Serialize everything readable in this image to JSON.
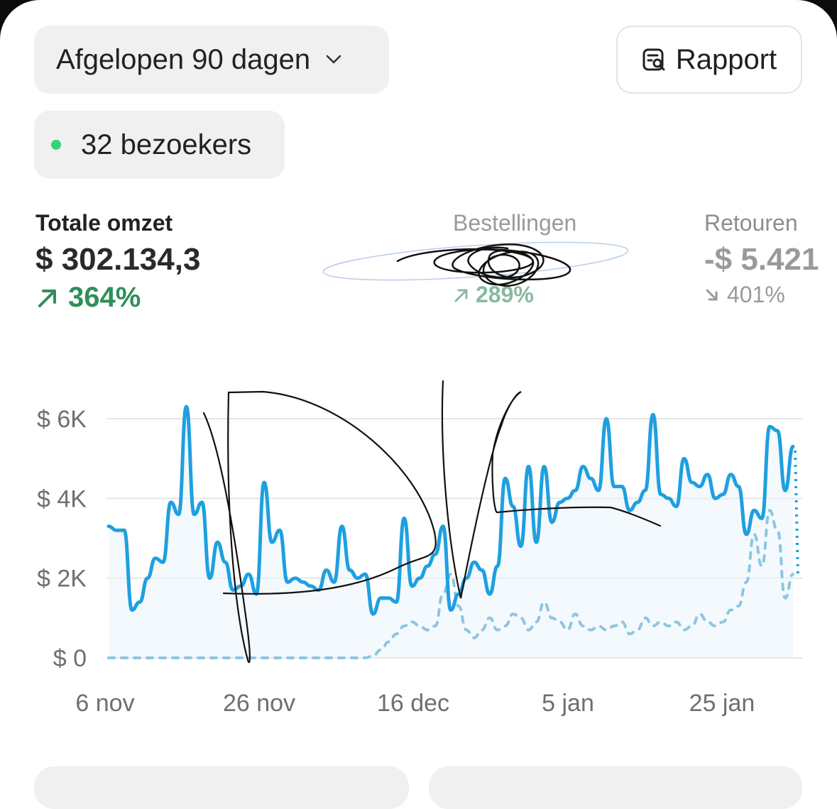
{
  "controls": {
    "range_label": "Afgelopen 90 dagen",
    "report_label": "Rapport",
    "visitors_label": "32 bezoekers"
  },
  "metrics": {
    "revenue": {
      "label": "Totale omzet",
      "value": "$ 302.134,3",
      "change": "364%",
      "trend": "up"
    },
    "orders": {
      "label": "Bestellingen",
      "value": "",
      "change": "289%",
      "trend": "up"
    },
    "returns": {
      "label": "Retouren",
      "value": "-$ 5.421",
      "change": "401%",
      "trend": "down"
    }
  },
  "colors": {
    "accent_green": "#2f8f5a",
    "live_dot": "#34d27b",
    "line_current": "#1ea0e0",
    "line_previous": "#8cc6e2",
    "scribble": "#111111"
  },
  "chart_data": {
    "type": "line",
    "title": "",
    "xlabel": "",
    "ylabel": "",
    "x_start": "6 nov",
    "x_end": "2 feb",
    "ylim": [
      0,
      6000
    ],
    "grid": true,
    "y_ticks": [
      "$ 0",
      "$ 2K",
      "$ 4K",
      "$ 6K"
    ],
    "x_ticks": [
      "6 nov",
      "26 nov",
      "16 dec",
      "5 jan",
      "25 jan"
    ],
    "series": [
      {
        "style": "solid",
        "values": [
          3300,
          3200,
          3200,
          1200,
          1400,
          2000,
          2500,
          2400,
          3900,
          3600,
          6300,
          3600,
          3900,
          2000,
          2900,
          2400,
          1700,
          1800,
          2100,
          1600,
          4400,
          2900,
          3200,
          1900,
          2000,
          1900,
          1800,
          1700,
          2200,
          1900,
          3300,
          2200,
          2000,
          2100,
          1100,
          1500,
          1500,
          1400,
          3500,
          1800,
          2000,
          2300,
          2600,
          3300,
          1200,
          1600,
          2000,
          2400,
          2200,
          1600,
          2300,
          4500,
          3800,
          2800,
          4800,
          2900,
          4800,
          3400,
          3900,
          4000,
          4200,
          4800,
          4500,
          4200,
          6000,
          4300,
          4300,
          3700,
          3900,
          4200,
          6100,
          4100,
          4000,
          3800,
          5000,
          4400,
          4300,
          4600,
          4000,
          4100,
          4600,
          4300,
          3100,
          3700,
          3500,
          5800,
          5700,
          4200,
          5300
        ]
      },
      {
        "style": "dashed",
        "values": [
          0,
          0,
          0,
          0,
          0,
          0,
          0,
          0,
          0,
          0,
          0,
          0,
          0,
          0,
          0,
          0,
          0,
          0,
          0,
          0,
          0,
          0,
          0,
          0,
          0,
          0,
          0,
          0,
          0,
          0,
          0,
          0,
          0,
          0,
          50,
          200,
          400,
          600,
          800,
          900,
          800,
          700,
          800,
          1600,
          2100,
          1300,
          700,
          500,
          700,
          1000,
          700,
          800,
          1100,
          1000,
          700,
          900,
          1400,
          1000,
          900,
          700,
          1100,
          800,
          700,
          800,
          700,
          800,
          900,
          600,
          700,
          1000,
          800,
          900,
          800,
          900,
          700,
          800,
          1100,
          900,
          800,
          900,
          1200,
          1300,
          1900,
          3100,
          2300,
          3700,
          3200,
          1500,
          2100
        ]
      }
    ]
  }
}
